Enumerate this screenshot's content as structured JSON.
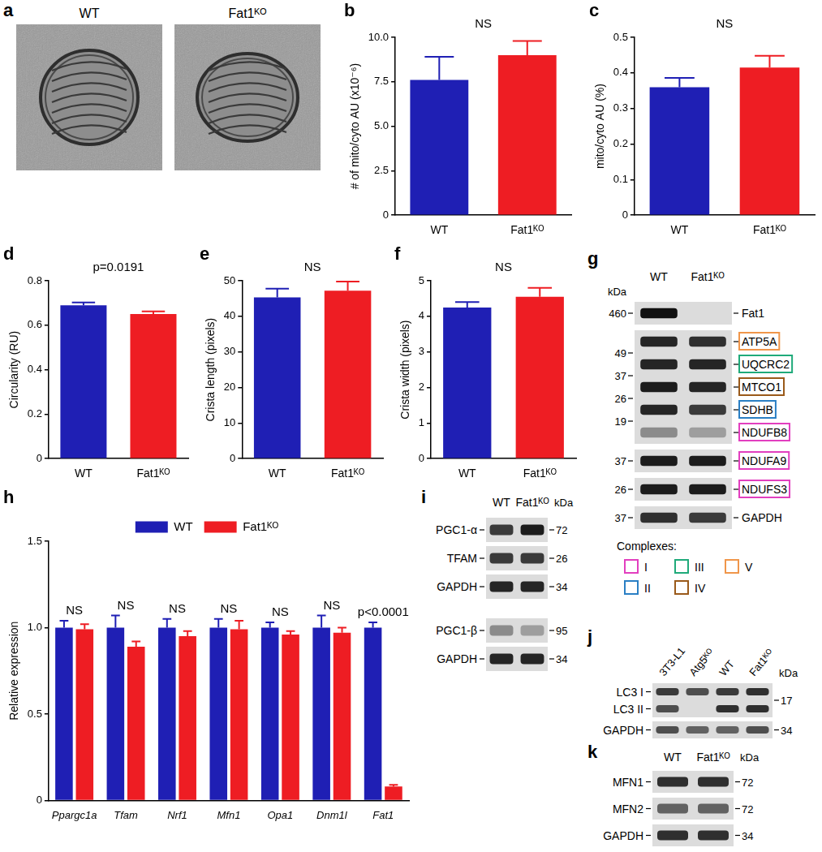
{
  "chart_data": [
    {
      "panel": "b",
      "type": "bar",
      "annotation": "NS",
      "y_label": "# of mito/cyto AU (x10⁻⁶)",
      "categories": [
        "WT",
        "Fat1ᴷᴼ"
      ],
      "values": [
        7.6,
        9.0
      ],
      "errors": [
        1.3,
        0.8
      ],
      "colors": [
        "#1f1fb4",
        "#ee1d23"
      ],
      "ylim": [
        0,
        10
      ],
      "yticks": [
        0,
        2.5,
        {
          "value": 5,
          "label": "5.0"
        },
        7.5,
        {
          "value": 10,
          "label": "10.0"
        }
      ],
      "grid": false
    },
    {
      "panel": "c",
      "type": "bar",
      "annotation": "NS",
      "y_label": "mito/cyto AU (%)",
      "categories": [
        "WT",
        "Fat1ᴷᴼ"
      ],
      "values": [
        0.36,
        0.415
      ],
      "errors": [
        0.026,
        0.033
      ],
      "colors": [
        "#1f1fb4",
        "#ee1d23"
      ],
      "ylim": [
        0,
        0.5
      ],
      "yticks": [
        0,
        0.1,
        0.2,
        0.3,
        0.4,
        0.5
      ],
      "grid": false
    },
    {
      "panel": "d",
      "type": "bar",
      "annotation": "p=0.0191",
      "y_label": "Circularity (RU)",
      "categories": [
        "WT",
        "Fat1ᴷᴼ"
      ],
      "values": [
        0.69,
        0.65
      ],
      "errors": [
        0.012,
        0.012
      ],
      "colors": [
        "#1f1fb4",
        "#ee1d23"
      ],
      "ylim": [
        0,
        0.8
      ],
      "yticks": [
        0,
        0.2,
        0.4,
        0.6,
        0.8
      ],
      "grid": false
    },
    {
      "panel": "e",
      "type": "bar",
      "annotation": "NS",
      "y_label": "Crista length (pixels)",
      "categories": [
        "WT",
        "Fat1ᴷᴼ"
      ],
      "values": [
        45.3,
        47.2
      ],
      "errors": [
        2.5,
        2.6
      ],
      "colors": [
        "#1f1fb4",
        "#ee1d23"
      ],
      "ylim": [
        0,
        50
      ],
      "yticks": [
        0,
        10,
        20,
        30,
        40,
        50
      ],
      "grid": false
    },
    {
      "panel": "f",
      "type": "bar",
      "annotation": "NS",
      "y_label": "Crista width (pixels)",
      "categories": [
        "WT",
        "Fat1ᴷᴼ"
      ],
      "values": [
        4.25,
        4.55
      ],
      "errors": [
        0.15,
        0.25
      ],
      "colors": [
        "#1f1fb4",
        "#ee1d23"
      ],
      "ylim": [
        0,
        5
      ],
      "yticks": [
        0,
        1,
        2,
        3,
        4,
        5
      ],
      "grid": false
    },
    {
      "panel": "h",
      "type": "bar",
      "legend": "top",
      "y_label": "Relative expression",
      "categories": [
        "Ppargc1a",
        "Tfam",
        "Nrf1",
        "Mfn1",
        "Opa1",
        "Dnm1l",
        "Fat1"
      ],
      "annotations": [
        "NS",
        "NS",
        "NS",
        "NS",
        "NS",
        "NS",
        "p<0.0001"
      ],
      "series": [
        {
          "name": "WT",
          "color": "#1f1fb4",
          "values": [
            1.0,
            1.0,
            1.0,
            1.0,
            1.0,
            1.0,
            1.0
          ],
          "errors": [
            0.04,
            0.07,
            0.05,
            0.05,
            0.03,
            0.07,
            0.03
          ]
        },
        {
          "name": "Fat1ᴷᴼ",
          "color": "#ee1d23",
          "values": [
            0.99,
            0.89,
            0.95,
            0.99,
            0.96,
            0.97,
            0.08
          ],
          "errors": [
            0.03,
            0.03,
            0.03,
            0.05,
            0.02,
            0.03,
            0.01
          ]
        }
      ],
      "ylim": [
        0,
        1.5
      ],
      "yticks": [
        0,
        0.5,
        {
          "value": 1,
          "label": "1.0"
        },
        1.5
      ],
      "grid": false
    }
  ],
  "em_panel": {
    "panel": "a",
    "images": [
      "WT",
      "Fat1ᴷᴼ"
    ]
  },
  "blots": [
    {
      "panel": "g",
      "lanes": [
        "WT",
        "Fat1ᴷᴼ"
      ],
      "unit": "kDa",
      "groups": [
        [
          {
            "markers": [
              460
            ],
            "bands": [
              {
                "label": "Fat1",
                "signal": [
                  1.0,
                  0.0
                ]
              }
            ]
          },
          {
            "markers": [
              49,
              37,
              26,
              19
            ],
            "bands": [
              {
                "label": "ATP5A",
                "signal": [
                  0.9,
                  0.85
                ],
                "complex": "V"
              },
              {
                "label": "UQCRC2",
                "signal": [
                  0.9,
                  0.9
                ],
                "complex": "III"
              },
              {
                "label": "MTCO1",
                "signal": [
                  0.95,
                  0.9
                ],
                "complex": "IV"
              },
              {
                "label": "SDHB",
                "signal": [
                  0.9,
                  0.8
                ],
                "complex": "II"
              },
              {
                "label": "NDUFB8",
                "signal": [
                  0.4,
                  0.3
                ],
                "complex": "I"
              }
            ]
          },
          {
            "markers": [
              37
            ],
            "bands": [
              {
                "label": "NDUFA9",
                "signal": [
                  0.95,
                  0.95
                ],
                "complex": "I"
              }
            ]
          },
          {
            "markers": [
              26
            ],
            "bands": [
              {
                "label": "NDUFS3",
                "signal": [
                  0.95,
                  0.95
                ],
                "complex": "I"
              }
            ]
          },
          {
            "markers": [
              37
            ],
            "bands": [
              {
                "label": "GAPDH",
                "signal": [
                  0.85,
                  0.8
                ]
              }
            ]
          }
        ]
      ],
      "complexes_title": "Complexes:",
      "complexes": [
        {
          "label": "I",
          "color": "#e23fbf"
        },
        {
          "label": "II",
          "color": "#2a7fc4"
        },
        {
          "label": "III",
          "color": "#1faa7a"
        },
        {
          "label": "IV",
          "color": "#9a5a1a"
        },
        {
          "label": "V",
          "color": "#f0964a"
        }
      ]
    },
    {
      "panel": "i",
      "lanes": [
        "WT",
        "Fat1ᴷᴼ"
      ],
      "unit": "kDa",
      "groups": [
        [
          {
            "markers": [
              72
            ],
            "bands": [
              {
                "label": "PGC1-α",
                "signal": [
                  0.8,
                  0.95
                ]
              }
            ]
          },
          {
            "markers": [
              26
            ],
            "bands": [
              {
                "label": "TFAM",
                "signal": [
                  0.8,
                  0.8
                ]
              }
            ]
          },
          {
            "markers": [
              34
            ],
            "bands": [
              {
                "label": "GAPDH",
                "signal": [
                  0.9,
                  0.9
                ]
              }
            ]
          }
        ],
        [
          {
            "markers": [
              95
            ],
            "bands": [
              {
                "label": "PGC1-β",
                "signal": [
                  0.4,
                  0.3
                ]
              }
            ]
          },
          {
            "markers": [
              34
            ],
            "bands": [
              {
                "label": "GAPDH",
                "signal": [
                  0.9,
                  0.9
                ]
              }
            ]
          }
        ]
      ]
    },
    {
      "panel": "j",
      "lanes": [
        "3T3-L1",
        "Atg5ᴷᴼ",
        "WT",
        "Fat1ᴷᴼ"
      ],
      "unit": "kDa",
      "groups": [
        [
          {
            "markers": [
              17
            ],
            "bands": [
              {
                "label": "LC3 I",
                "signal": [
                  0.8,
                  0.7,
                  0.8,
                  0.85
                ]
              },
              {
                "label": "LC3 II",
                "signal": [
                  0.7,
                  0.0,
                  0.85,
                  0.85
                ]
              }
            ]
          },
          {
            "markers": [
              34
            ],
            "bands": [
              {
                "label": "GAPDH",
                "signal": [
                  0.7,
                  0.6,
                  0.6,
                  0.7
                ]
              }
            ]
          }
        ]
      ]
    },
    {
      "panel": "k",
      "lanes": [
        "WT",
        "Fat1ᴷᴼ"
      ],
      "unit": "kDa",
      "groups": [
        [
          {
            "markers": [
              72
            ],
            "bands": [
              {
                "label": "MFN1",
                "signal": [
                  0.85,
                  0.85
                ]
              }
            ]
          },
          {
            "markers": [
              72
            ],
            "bands": [
              {
                "label": "MFN2",
                "signal": [
                  0.6,
                  0.6
                ]
              }
            ]
          },
          {
            "markers": [
              34
            ],
            "bands": [
              {
                "label": "GAPDH",
                "signal": [
                  0.85,
                  0.85
                ]
              }
            ]
          }
        ]
      ]
    }
  ]
}
